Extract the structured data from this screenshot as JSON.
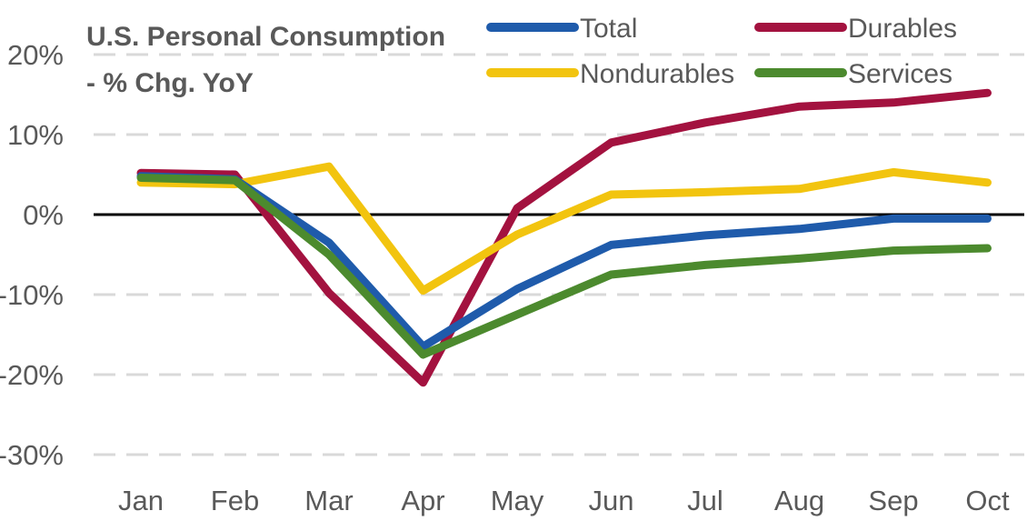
{
  "chart_data": {
    "type": "line",
    "title_lines": [
      "U.S. Personal Consumption",
      "- % Chg. YoY"
    ],
    "xlabel": "",
    "ylabel": "",
    "categories": [
      "Jan",
      "Feb",
      "Mar",
      "Apr",
      "May",
      "Jun",
      "Jul",
      "Aug",
      "Sep",
      "Oct"
    ],
    "ylim": [
      -30,
      20
    ],
    "yticks": [
      20,
      10,
      0,
      -10,
      -20,
      -30
    ],
    "ytick_labels": [
      "20%",
      "10%",
      "0%",
      "-10%",
      "-20%",
      "-30%"
    ],
    "grid": "horizontal-dashed",
    "zero_line": true,
    "legend_position": "top-right",
    "series": [
      {
        "name": "Total",
        "color": "#1f5bab",
        "values": [
          4.8,
          4.4,
          -3.5,
          -16.5,
          -9.3,
          -3.8,
          -2.6,
          -1.8,
          -0.5,
          -0.5
        ]
      },
      {
        "name": "Durables",
        "color": "#a3123f",
        "values": [
          5.2,
          5.0,
          -9.8,
          -21.0,
          0.8,
          9.0,
          11.5,
          13.5,
          14.0,
          15.2
        ]
      },
      {
        "name": "Nondurables",
        "color": "#f2c40f",
        "values": [
          4.0,
          3.8,
          6.0,
          -9.5,
          -2.5,
          2.5,
          2.8,
          3.2,
          5.3,
          4.0
        ]
      },
      {
        "name": "Services",
        "color": "#4c8a2e",
        "values": [
          4.6,
          4.3,
          -5.0,
          -17.5,
          -12.5,
          -7.5,
          -6.3,
          -5.5,
          -4.5,
          -4.2
        ]
      }
    ]
  }
}
